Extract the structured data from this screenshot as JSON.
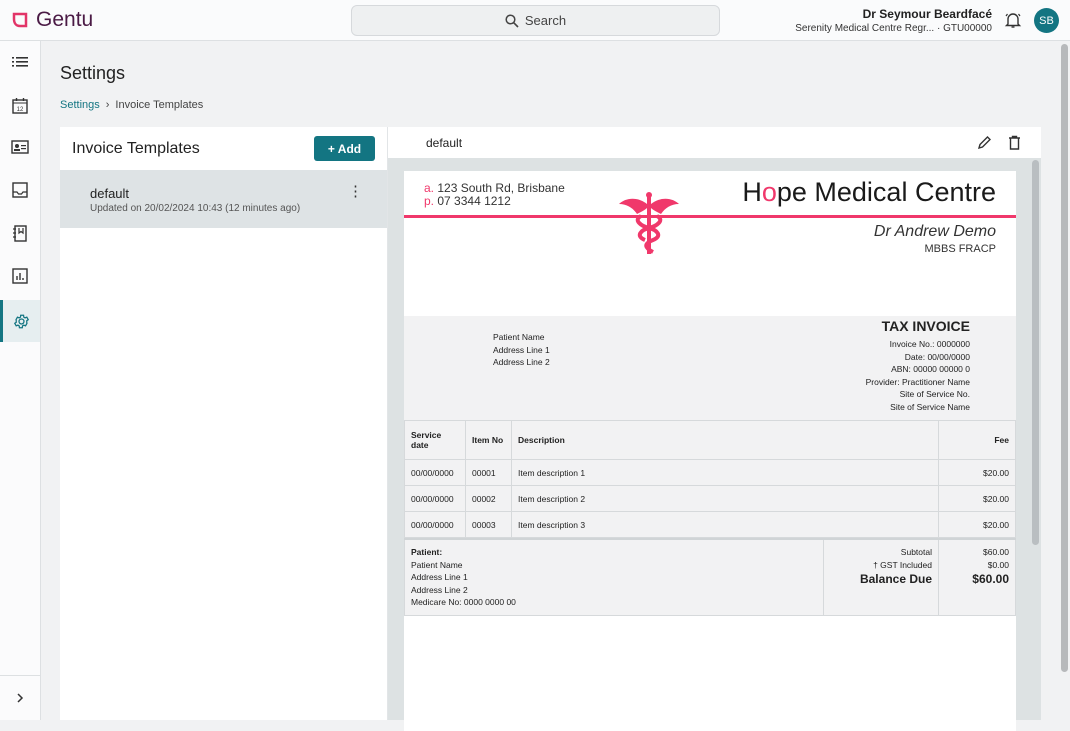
{
  "app": {
    "name": "Gentu",
    "brand_color": "#137582",
    "accent": "#f0386b"
  },
  "search": {
    "placeholder": "Search"
  },
  "user": {
    "name": "Dr Seymour Beardfacé",
    "org": "Serenity Medical Centre Regr... · GTU00000",
    "initials": "SB"
  },
  "sidebar": {
    "items": [
      "list-icon",
      "calendar-icon",
      "contact-card-icon",
      "inbox-icon",
      "notebook-icon",
      "chart-icon",
      "gear-icon"
    ],
    "active": "gear-icon"
  },
  "page": {
    "title": "Settings",
    "breadcrumb": [
      "Settings",
      "Invoice Templates"
    ]
  },
  "templates": {
    "title": "Invoice Templates",
    "add_label": "+ Add",
    "items": [
      {
        "name": "default",
        "updated": "Updated on 20/02/2024 10:43 (12 minutes ago)"
      }
    ]
  },
  "preview": {
    "name": "default",
    "header": {
      "addr_prefix": "a.",
      "address": "123 South Rd, Brisbane",
      "phone_prefix": "p.",
      "phone": "07 3344 1212",
      "clinic_h": "H",
      "clinic_o": "o",
      "clinic_rest": "pe Medical Centre",
      "doctor": "Dr Andrew Demo",
      "quals": "MBBS FRACP"
    },
    "patient": [
      "Patient Name",
      "Address Line 1",
      "Address Line 2"
    ],
    "invoice": {
      "title": "TAX INVOICE",
      "lines": [
        "Invoice No.: 0000000",
        "Date: 00/00/0000",
        "ABN: 00000 00000 0",
        "Provider: Practitioner Name",
        "Site of Service No.",
        "Site of Service Name"
      ]
    },
    "table": {
      "headers": [
        "Service date",
        "Item No",
        "Description",
        "Fee"
      ],
      "rows": [
        [
          "00/00/0000",
          "00001",
          "Item description 1",
          "$20.00"
        ],
        [
          "00/00/0000",
          "00002",
          "Item description 2",
          "$20.00"
        ],
        [
          "00/00/0000",
          "00003",
          "Item description 3",
          "$20.00"
        ]
      ]
    },
    "footer": {
      "patient_label": "Patient:",
      "patient_lines": [
        "Patient Name",
        "Address Line 1",
        "Address Line 2",
        "Medicare No: 0000 0000 00"
      ],
      "subtotal_label": "Subtotal",
      "subtotal": "$60.00",
      "gst_label": "† GST Included",
      "gst": "$0.00",
      "balance_label": "Balance Due",
      "balance": "$60.00"
    }
  }
}
